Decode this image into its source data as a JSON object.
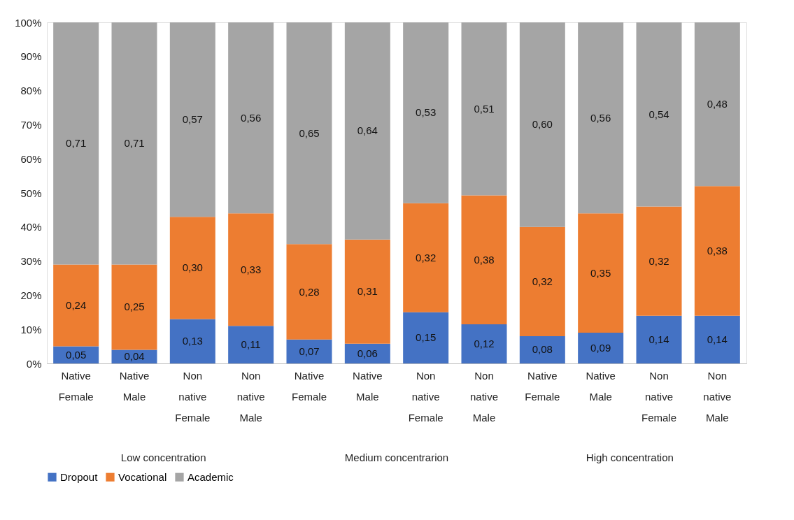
{
  "chart_data": {
    "type": "bar",
    "stacked": true,
    "categories": [
      "Native Female",
      "Native Male",
      "Non native Female",
      "Non native Male",
      "Native Female",
      "Native Male",
      "Non native Female",
      "Non native Male",
      "Native Female",
      "Native Male",
      "Non native Female",
      "Non native Male"
    ],
    "series": [
      {
        "name": "Dropout",
        "color": "#4472c4",
        "values": [
          0.05,
          0.04,
          0.13,
          0.11,
          0.07,
          0.058,
          0.15,
          0.115,
          0.08,
          0.09,
          0.14,
          0.14
        ],
        "value_labels": [
          "0,05",
          "0,04",
          "0,13",
          "0,11",
          "0,07",
          "0,06",
          "0,15",
          "0,12",
          "0,08",
          "0,09",
          "0,14",
          "0,14"
        ]
      },
      {
        "name": "Vocational",
        "color": "#ed7d31",
        "values": [
          0.24,
          0.25,
          0.3,
          0.33,
          0.28,
          0.305,
          0.32,
          0.378,
          0.32,
          0.35,
          0.32,
          0.38
        ],
        "value_labels": [
          "0,24",
          "0,25",
          "0,30",
          "0,33",
          "0,28",
          "0,31",
          "0,32",
          "0,38",
          "0,32",
          "0,35",
          "0,32",
          "0,38"
        ]
      },
      {
        "name": "Academic",
        "color": "#a5a5a5",
        "values": [
          0.71,
          0.71,
          0.57,
          0.56,
          0.65,
          0.637,
          0.53,
          0.507,
          0.6,
          0.56,
          0.54,
          0.48
        ],
        "value_labels": [
          "0,71",
          "0,71",
          "0,57",
          "0,56",
          "0,65",
          "0,64",
          "0,53",
          "0,51",
          "0,60",
          "0,56",
          "0,54",
          "0,48"
        ]
      }
    ],
    "ylim": [
      0,
      1
    ],
    "yticks": [
      {
        "value": 0,
        "label": "0%"
      },
      {
        "value": 0.1,
        "label": "10%"
      },
      {
        "value": 0.2,
        "label": "20%"
      },
      {
        "value": 0.3,
        "label": "30%"
      },
      {
        "value": 0.4,
        "label": "40%"
      },
      {
        "value": 0.5,
        "label": "50%"
      },
      {
        "value": 0.6,
        "label": "60%"
      },
      {
        "value": 0.7,
        "label": "70%"
      },
      {
        "value": 0.8,
        "label": "80%"
      },
      {
        "value": 0.9,
        "label": "90%"
      },
      {
        "value": 1,
        "label": "100%"
      }
    ],
    "annotations": [
      "Low concentration",
      "Medium concentrarion",
      "High concentration"
    ],
    "grid": false,
    "legend": "bottom"
  }
}
